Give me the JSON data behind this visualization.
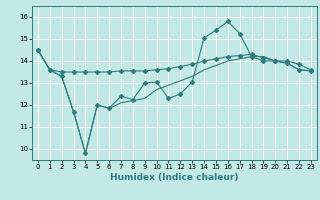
{
  "xlabel": "Humidex (Indice chaleur)",
  "bg_color": "#c2e8e8",
  "line_color": "#2e7b7b",
  "grid_color": "#ffffff",
  "xmin": -0.5,
  "xmax": 23.5,
  "ymin": 9.5,
  "ymax": 16.5,
  "yticks": [
    10,
    11,
    12,
    13,
    14,
    15,
    16
  ],
  "xticks": [
    0,
    1,
    2,
    3,
    4,
    5,
    6,
    7,
    8,
    9,
    10,
    11,
    12,
    13,
    14,
    15,
    16,
    17,
    18,
    19,
    20,
    21,
    22,
    23
  ],
  "line1_x": [
    0,
    1,
    2,
    3,
    4,
    5,
    6,
    7,
    8,
    9,
    10,
    11,
    12,
    13,
    14,
    15,
    16,
    17,
    18,
    19,
    20,
    21,
    22,
    23
  ],
  "line1_y": [
    14.5,
    13.6,
    13.3,
    11.7,
    9.8,
    12.0,
    11.85,
    12.4,
    12.25,
    13.0,
    13.05,
    12.3,
    12.5,
    13.05,
    15.05,
    15.4,
    15.8,
    15.25,
    14.2,
    14.0,
    14.0,
    13.9,
    13.6,
    13.55
  ],
  "line2_x": [
    0,
    1,
    2,
    3,
    4,
    5,
    6,
    7,
    8,
    9,
    10,
    11,
    12,
    13,
    14,
    15,
    16,
    17,
    18,
    19,
    20,
    21,
    22,
    23
  ],
  "line2_y": [
    14.5,
    13.6,
    13.5,
    13.5,
    13.5,
    13.5,
    13.5,
    13.55,
    13.55,
    13.55,
    13.6,
    13.65,
    13.75,
    13.85,
    14.0,
    14.1,
    14.2,
    14.25,
    14.3,
    14.15,
    14.0,
    14.0,
    13.85,
    13.6
  ],
  "line3_x": [
    0,
    1,
    2,
    3,
    4,
    5,
    6,
    7,
    8,
    9,
    10,
    11,
    12,
    13,
    14,
    15,
    16,
    17,
    18,
    19,
    20,
    21,
    22,
    23
  ],
  "line3_y": [
    14.5,
    13.6,
    13.3,
    11.7,
    9.8,
    12.0,
    11.85,
    12.1,
    12.2,
    12.3,
    12.7,
    12.9,
    13.1,
    13.3,
    13.6,
    13.8,
    14.0,
    14.1,
    14.2,
    14.2,
    14.0,
    13.9,
    13.6,
    13.55
  ]
}
